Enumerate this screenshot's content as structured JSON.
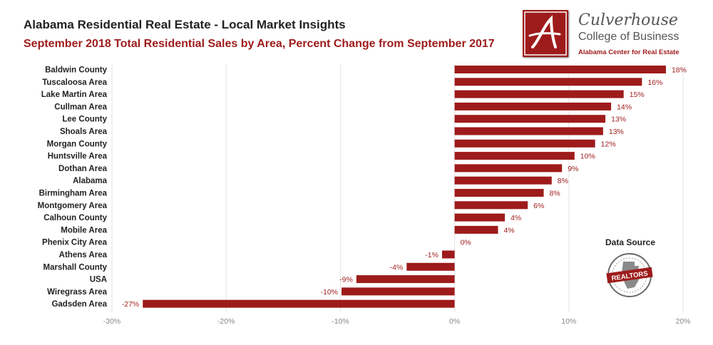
{
  "header": {
    "title": "Alabama Residential Real Estate - Local Market Insights",
    "subtitle": "September 2018 Total Residential Sales by Area, Percent Change from September 2017"
  },
  "logo": {
    "name": "Culverhouse",
    "college": "College of Business",
    "center": "Alabama Center for Real Estate"
  },
  "source": {
    "title": "Data Source",
    "badge": "REALTORS"
  },
  "colors": {
    "bar": "#9e1b1b",
    "label": "#9e1b1b",
    "grid": "#e3e3e3"
  },
  "chart_data": {
    "type": "bar",
    "orientation": "horizontal",
    "categories": [
      "Baldwin County",
      "Tuscaloosa Area",
      "Lake Martin Area",
      "Cullman Area",
      "Lee County",
      "Shoals Area",
      "Morgan County",
      "Huntsville Area",
      "Dothan Area",
      "Alabama",
      "Birmingham Area",
      "Montgomery Area",
      "Calhoun County",
      "Mobile Area",
      "Phenix City Area",
      "Athens Area",
      "Marshall County",
      "USA",
      "Wiregrass Area",
      "Gadsden Area"
    ],
    "values": [
      18.5,
      16.4,
      14.8,
      13.7,
      13.2,
      13.0,
      12.3,
      10.5,
      9.4,
      8.5,
      7.8,
      6.4,
      4.4,
      3.8,
      0,
      -1.1,
      -4.2,
      -8.6,
      -9.9,
      -27.3
    ],
    "labels": [
      "18%",
      "16%",
      "15%",
      "14%",
      "13%",
      "13%",
      "12%",
      "10%",
      "9%",
      "8%",
      "8%",
      "6%",
      "4%",
      "4%",
      "0%",
      "-1%",
      "-4%",
      "-9%",
      "-10%",
      "-27%"
    ],
    "xlim": [
      -30,
      20
    ],
    "xticks": [
      -30,
      -20,
      -10,
      0,
      10,
      20
    ],
    "xtick_labels": [
      "-30%",
      "-20%",
      "-10%",
      "0%",
      "10%",
      "20%"
    ],
    "grid": true,
    "legend": "none"
  }
}
